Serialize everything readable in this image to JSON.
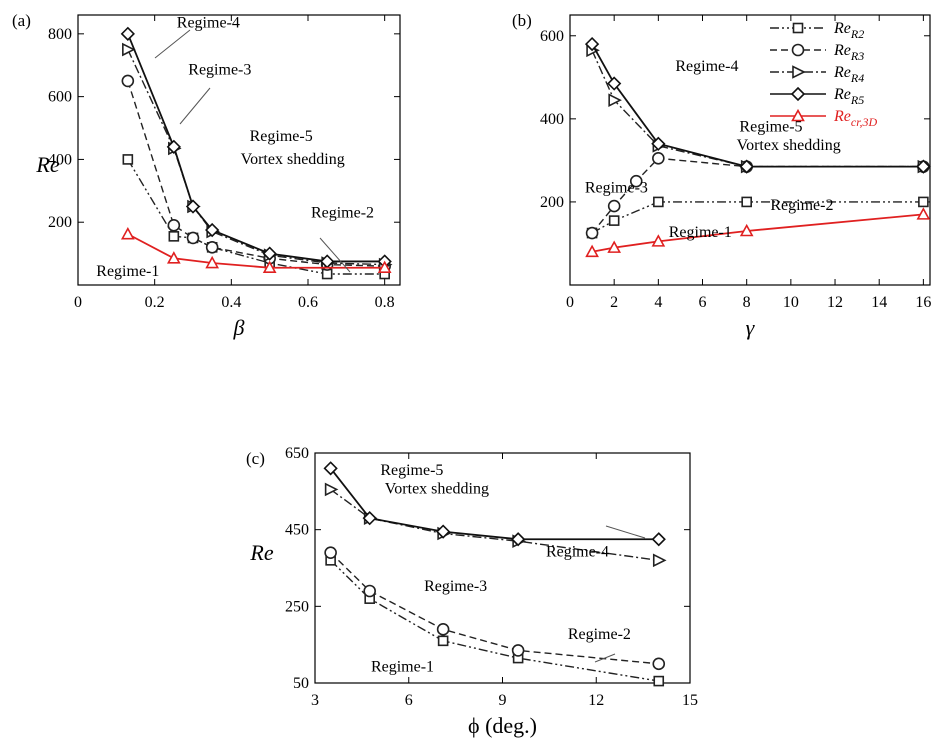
{
  "chart_data": [
    {
      "panel_label": "(a)",
      "type": "line",
      "xlabel": "β",
      "ylabel": "Re",
      "xlim": [
        0,
        0.84
      ],
      "ylim": [
        0,
        860
      ],
      "xticks": [
        0,
        0.2,
        0.4,
        0.6,
        0.8
      ],
      "xtick_labels": [
        "0",
        "0.2",
        "0.4",
        "0.6",
        "0.8"
      ],
      "yticks": [
        200,
        400,
        600,
        800
      ],
      "ytick_labels": [
        "200",
        "400",
        "600",
        "800"
      ],
      "series": [
        {
          "key": "R2",
          "style": "dashdotdot",
          "marker": "square",
          "color": "#222222",
          "x": [
            0.13,
            0.25,
            0.3,
            0.35,
            0.5,
            0.65,
            0.8
          ],
          "y": [
            400,
            155,
            150,
            120,
            70,
            35,
            35
          ]
        },
        {
          "key": "R3",
          "style": "dashed",
          "marker": "circle",
          "color": "#222222",
          "x": [
            0.13,
            0.25,
            0.3,
            0.35,
            0.5,
            0.65,
            0.8
          ],
          "y": [
            650,
            190,
            150,
            120,
            85,
            65,
            60
          ]
        },
        {
          "key": "R4",
          "style": "dashdot",
          "marker": "triangle",
          "color": "#222222",
          "x": [
            0.13,
            0.25,
            0.3,
            0.35,
            0.5,
            0.65,
            0.8
          ],
          "y": [
            750,
            435,
            250,
            170,
            95,
            70,
            65
          ]
        },
        {
          "key": "R5",
          "style": "solid",
          "marker": "diamond",
          "color": "#111111",
          "x": [
            0.13,
            0.25,
            0.3,
            0.35,
            0.5,
            0.65,
            0.8
          ],
          "y": [
            800,
            440,
            250,
            175,
            100,
            75,
            75
          ]
        },
        {
          "key": "cr3D",
          "style": "solid",
          "marker": "triangle",
          "color": "#e02020",
          "x": [
            0.13,
            0.25,
            0.35,
            0.5,
            0.8
          ],
          "y": [
            162,
            85,
            70,
            55,
            55
          ]
        }
      ],
      "annotations": [
        {
          "text": "Regime-4",
          "x": 0.34,
          "y": 820
        },
        {
          "text": "Regime-3",
          "x": 0.37,
          "y": 670
        },
        {
          "text": "Regime-5",
          "x": 0.53,
          "y": 458
        },
        {
          "text": "Vortex shedding",
          "x": 0.56,
          "y": 385
        },
        {
          "text": "Regime-2",
          "x": 0.69,
          "y": 215
        },
        {
          "text": "Regime-1",
          "x": 0.13,
          "y": 28
        }
      ]
    },
    {
      "panel_label": "(b)",
      "type": "line",
      "xlabel": "γ",
      "ylabel": "",
      "xlim": [
        0,
        16.3
      ],
      "ylim": [
        0,
        650
      ],
      "xticks": [
        0,
        2,
        4,
        6,
        8,
        10,
        12,
        14,
        16
      ],
      "xtick_labels": [
        "0",
        "2",
        "4",
        "6",
        "8",
        "10",
        "12",
        "14",
        "16"
      ],
      "yticks": [
        200,
        400,
        600
      ],
      "ytick_labels": [
        "200",
        "400",
        "600"
      ],
      "series": [
        {
          "key": "R2",
          "style": "dashdotdot",
          "marker": "square",
          "color": "#222222",
          "x": [
            1,
            2,
            4,
            8,
            16
          ],
          "y": [
            125,
            155,
            200,
            200,
            200
          ]
        },
        {
          "key": "R3",
          "style": "dashed",
          "marker": "circle",
          "color": "#222222",
          "x": [
            1,
            2,
            3,
            4,
            8,
            16
          ],
          "y": [
            125,
            190,
            250,
            305,
            285,
            285
          ]
        },
        {
          "key": "R4",
          "style": "dashdot",
          "marker": "triangle",
          "color": "#222222",
          "x": [
            1,
            2,
            4,
            8,
            16
          ],
          "y": [
            565,
            445,
            335,
            285,
            285
          ]
        },
        {
          "key": "R5",
          "style": "solid",
          "marker": "diamond",
          "color": "#111111",
          "x": [
            1,
            2,
            4,
            8,
            16
          ],
          "y": [
            580,
            485,
            340,
            285,
            285
          ]
        },
        {
          "key": "cr3D",
          "style": "solid",
          "marker": "triangle",
          "color": "#e02020",
          "x": [
            1,
            2,
            4,
            8,
            16
          ],
          "y": [
            80,
            90,
            105,
            130,
            170
          ]
        }
      ],
      "annotations": [
        {
          "text": "Regime-4",
          "x": 6.2,
          "y": 515
        },
        {
          "text": "Regime-5",
          "x": 9.1,
          "y": 370
        },
        {
          "text": "Vortex shedding",
          "x": 9.9,
          "y": 325
        },
        {
          "text": "Regime-3",
          "x": 2.1,
          "y": 223
        },
        {
          "text": "Regime-2",
          "x": 10.5,
          "y": 180
        },
        {
          "text": "Regime-1",
          "x": 5.9,
          "y": 116
        }
      ],
      "legend": {
        "position": "top-right",
        "entries": [
          {
            "series": "R2",
            "base": "Re",
            "sub": "R2",
            "color": "#000000"
          },
          {
            "series": "R3",
            "base": "Re",
            "sub": "R3",
            "color": "#000000"
          },
          {
            "series": "R4",
            "base": "Re",
            "sub": "R4",
            "color": "#000000"
          },
          {
            "series": "R5",
            "base": "Re",
            "sub": "R5",
            "color": "#000000"
          },
          {
            "series": "cr3D",
            "base": "Re",
            "sub": "cr,3D",
            "color": "#e02020"
          }
        ]
      }
    },
    {
      "panel_label": "(c)",
      "type": "line",
      "xlabel": "ϕ (deg.)",
      "ylabel": "Re",
      "xlim": [
        3,
        15
      ],
      "ylim": [
        50,
        650
      ],
      "xticks": [
        3,
        6,
        9,
        12,
        15
      ],
      "xtick_labels": [
        "3",
        "6",
        "9",
        "12",
        "15"
      ],
      "yticks": [
        50,
        250,
        450,
        650
      ],
      "ytick_labels": [
        "50",
        "250",
        "450",
        "650"
      ],
      "series": [
        {
          "key": "R2",
          "style": "dashdotdot",
          "marker": "square",
          "color": "#222222",
          "x": [
            3.5,
            4.75,
            7.1,
            9.5,
            14
          ],
          "y": [
            370,
            270,
            160,
            115,
            55
          ]
        },
        {
          "key": "R3",
          "style": "dashed",
          "marker": "circle",
          "color": "#222222",
          "x": [
            3.5,
            4.75,
            7.1,
            9.5,
            14
          ],
          "y": [
            390,
            290,
            190,
            135,
            100
          ]
        },
        {
          "key": "R4",
          "style": "dashdot",
          "marker": "triangle",
          "color": "#222222",
          "x": [
            3.5,
            4.75,
            7.1,
            9.5,
            14
          ],
          "y": [
            555,
            480,
            440,
            420,
            370
          ]
        },
        {
          "key": "R5",
          "style": "solid",
          "marker": "diamond",
          "color": "#111111",
          "x": [
            3.5,
            4.75,
            7.1,
            9.5,
            14
          ],
          "y": [
            610,
            480,
            445,
            425,
            425
          ]
        }
      ],
      "annotations": [
        {
          "text": "Regime-5",
          "x": 6.1,
          "y": 592
        },
        {
          "text": "Vortex shedding",
          "x": 6.9,
          "y": 545
        },
        {
          "text": "Regime-4",
          "x": 11.4,
          "y": 380
        },
        {
          "text": "Regime-3",
          "x": 7.5,
          "y": 290
        },
        {
          "text": "Regime-2",
          "x": 12.1,
          "y": 165
        },
        {
          "text": "Regime-1",
          "x": 5.8,
          "y": 80
        }
      ]
    }
  ]
}
